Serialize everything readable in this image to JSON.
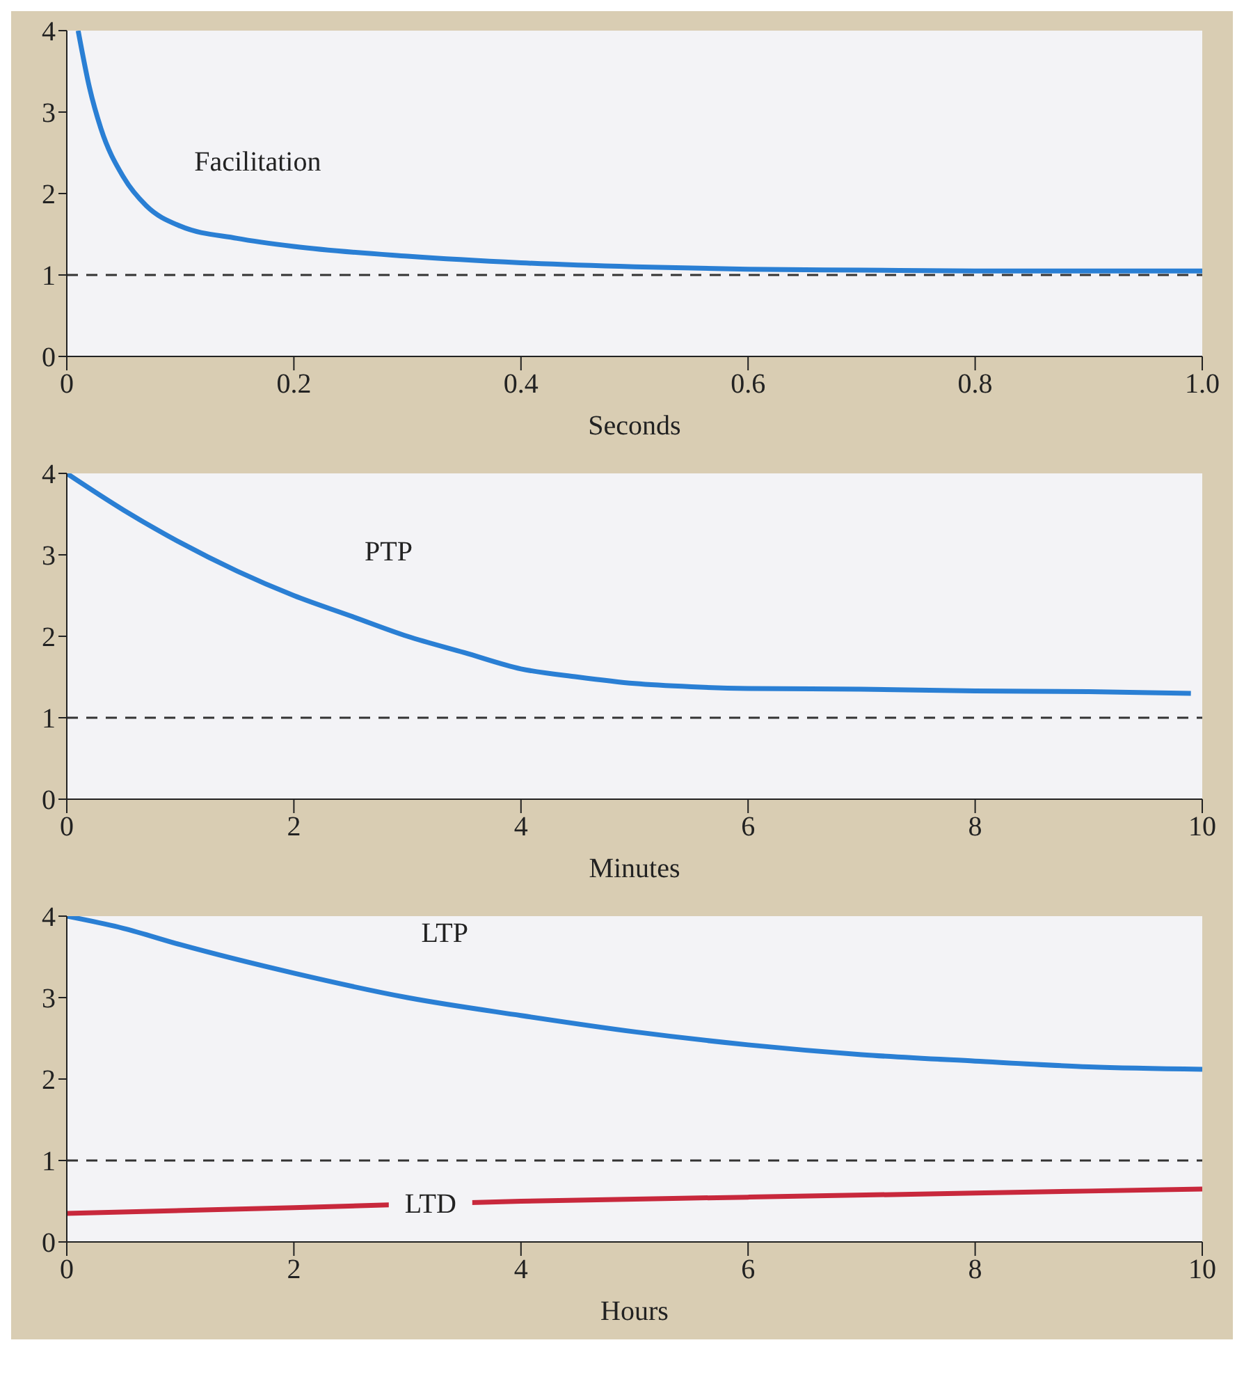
{
  "chart_data": [
    {
      "type": "line",
      "xlabel": "Seconds",
      "xlim": [
        0,
        1
      ],
      "xticks": [
        0,
        0.2,
        0.4,
        0.6,
        0.8,
        {
          "value": 1,
          "label": "1.0"
        }
      ],
      "ylim": [
        0,
        4
      ],
      "yticks": [
        0,
        1,
        2,
        3,
        4
      ],
      "marker": "none",
      "line_style": "solid",
      "ref_lines": [
        {
          "axis": "y",
          "value": 1,
          "line_style": "dashed",
          "color": "#333333"
        }
      ],
      "series": [
        {
          "name": "Facilitation",
          "color": "#2a7fd4",
          "x": [
            0.01,
            0.02,
            0.03,
            0.05,
            0.07,
            0.1,
            0.15,
            0.2,
            0.3,
            0.4,
            0.5,
            0.6,
            0.7,
            0.8,
            0.9,
            1.0
          ],
          "values": [
            4.0,
            3.3,
            2.8,
            2.2,
            1.85,
            1.6,
            1.45,
            1.35,
            1.23,
            1.15,
            1.1,
            1.07,
            1.06,
            1.05,
            1.05,
            1.05
          ]
        }
      ]
    },
    {
      "type": "line",
      "xlabel": "Minutes",
      "xlim": [
        0,
        10
      ],
      "xticks": [
        0,
        2,
        4,
        6,
        8,
        10
      ],
      "ylim": [
        0,
        4
      ],
      "yticks": [
        0,
        1,
        2,
        3,
        4
      ],
      "marker": "none",
      "line_style": "solid",
      "ref_lines": [
        {
          "axis": "y",
          "value": 1,
          "line_style": "dashed",
          "color": "#333333"
        }
      ],
      "series": [
        {
          "name": "PTP",
          "color": "#2a7fd4",
          "x": [
            0,
            0.5,
            1,
            1.5,
            2,
            2.5,
            3,
            3.5,
            4,
            4.5,
            5,
            5.5,
            6,
            7,
            8,
            9,
            9.9
          ],
          "values": [
            4.0,
            3.55,
            3.15,
            2.8,
            2.5,
            2.25,
            2.0,
            1.8,
            1.6,
            1.5,
            1.42,
            1.38,
            1.36,
            1.35,
            1.33,
            1.32,
            1.3
          ]
        }
      ]
    },
    {
      "type": "line",
      "xlabel": "Hours",
      "xlim": [
        0,
        10
      ],
      "xticks": [
        0,
        2,
        4,
        6,
        8,
        10
      ],
      "ylim": [
        0,
        4
      ],
      "yticks": [
        0,
        1,
        2,
        3,
        4
      ],
      "marker": "none",
      "line_style": "solid",
      "ref_lines": [
        {
          "axis": "y",
          "value": 1,
          "line_style": "dashed",
          "color": "#333333"
        }
      ],
      "series": [
        {
          "name": "LTP",
          "color": "#2a7fd4",
          "x": [
            0,
            0.5,
            1,
            2,
            3,
            4,
            5,
            6,
            7,
            8,
            9,
            10
          ],
          "values": [
            4.0,
            3.85,
            3.65,
            3.3,
            3.0,
            2.78,
            2.58,
            2.42,
            2.3,
            2.22,
            2.15,
            2.12
          ]
        },
        {
          "name": "LTD",
          "color": "#c8283c",
          "x": [
            0,
            2,
            4,
            6,
            8,
            10
          ],
          "values": [
            0.35,
            0.42,
            0.5,
            0.55,
            0.6,
            0.65
          ]
        }
      ]
    }
  ]
}
